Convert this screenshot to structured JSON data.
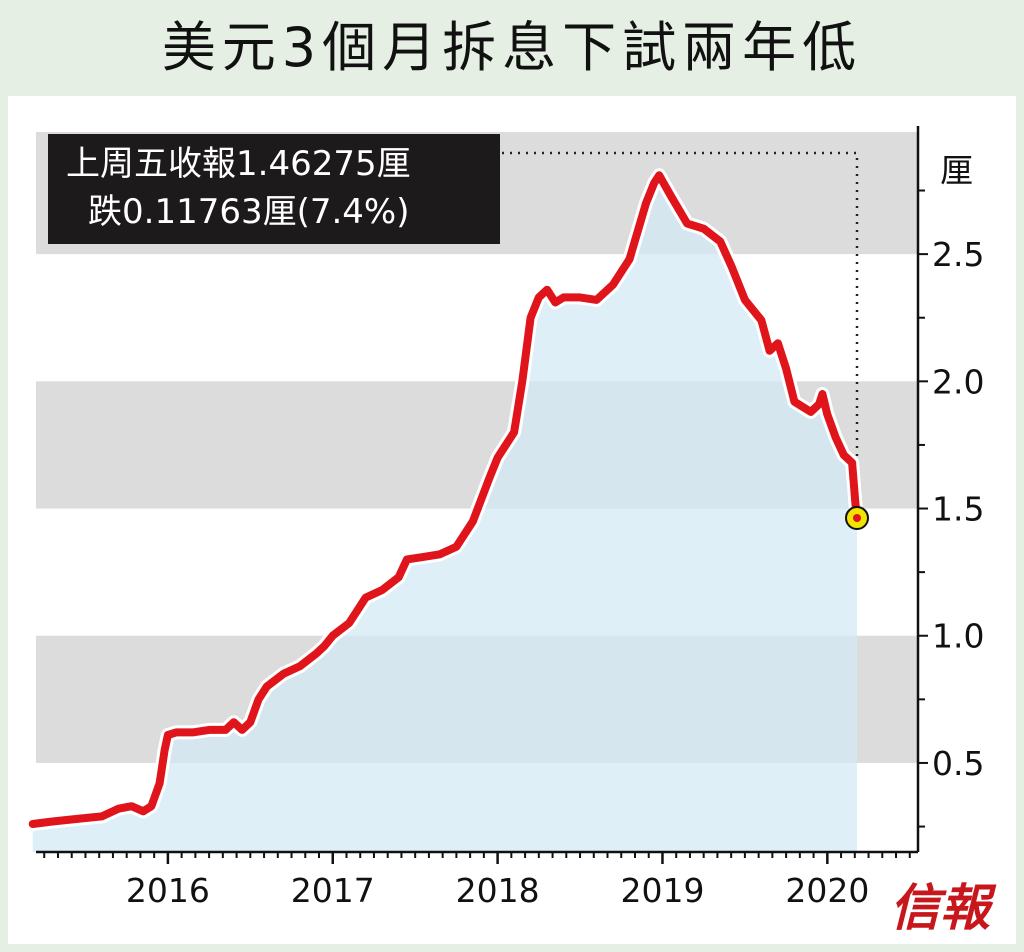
{
  "title": "美元3個月拆息下試兩年低",
  "annotation": {
    "line1": "上周五收報1.46275厘",
    "line2": "跌0.11763厘(7.4%)"
  },
  "logo": "信報",
  "colors": {
    "line": "#e0141b",
    "area": "#d3eaf6",
    "band": "#dcdcdc",
    "marker": "#f2e400"
  },
  "chart_data": {
    "type": "area",
    "title": "美元3個月拆息下試兩年低",
    "ylabel": "厘",
    "ylim": [
      0.15,
      2.98
    ],
    "yticks": [
      0.5,
      1.0,
      1.5,
      2.0,
      2.5
    ],
    "ytick_labels": [
      "0.5",
      "1.0",
      "1.5",
      "2.0",
      "2.5"
    ],
    "xlim": [
      2015.2,
      2020.55
    ],
    "xticks": [
      2016,
      2017,
      2018,
      2019,
      2020
    ],
    "xtick_labels": [
      "2016",
      "2017",
      "2018",
      "2019",
      "2020"
    ],
    "grid": "alternating horizontal bands",
    "series": [
      {
        "values": [
          [
            2015.18,
            0.26
          ],
          [
            2015.3,
            0.27
          ],
          [
            2015.45,
            0.28
          ],
          [
            2015.6,
            0.29
          ],
          [
            2015.7,
            0.32
          ],
          [
            2015.78,
            0.33
          ],
          [
            2015.85,
            0.31
          ],
          [
            2015.9,
            0.33
          ],
          [
            2015.95,
            0.42
          ],
          [
            2015.98,
            0.55
          ],
          [
            2016.0,
            0.61
          ],
          [
            2016.05,
            0.62
          ],
          [
            2016.15,
            0.62
          ],
          [
            2016.25,
            0.63
          ],
          [
            2016.35,
            0.63
          ],
          [
            2016.4,
            0.66
          ],
          [
            2016.45,
            0.63
          ],
          [
            2016.5,
            0.66
          ],
          [
            2016.55,
            0.75
          ],
          [
            2016.6,
            0.8
          ],
          [
            2016.7,
            0.85
          ],
          [
            2016.8,
            0.88
          ],
          [
            2016.9,
            0.93
          ],
          [
            2016.95,
            0.96
          ],
          [
            2017.0,
            1.0
          ],
          [
            2017.1,
            1.05
          ],
          [
            2017.2,
            1.15
          ],
          [
            2017.3,
            1.18
          ],
          [
            2017.4,
            1.23
          ],
          [
            2017.45,
            1.3
          ],
          [
            2017.55,
            1.31
          ],
          [
            2017.65,
            1.32
          ],
          [
            2017.75,
            1.35
          ],
          [
            2017.85,
            1.45
          ],
          [
            2017.95,
            1.62
          ],
          [
            2018.0,
            1.7
          ],
          [
            2018.1,
            1.8
          ],
          [
            2018.15,
            2.0
          ],
          [
            2018.2,
            2.25
          ],
          [
            2018.25,
            2.33
          ],
          [
            2018.3,
            2.36
          ],
          [
            2018.35,
            2.31
          ],
          [
            2018.4,
            2.33
          ],
          [
            2018.5,
            2.33
          ],
          [
            2018.6,
            2.32
          ],
          [
            2018.7,
            2.38
          ],
          [
            2018.8,
            2.48
          ],
          [
            2018.9,
            2.7
          ],
          [
            2018.95,
            2.78
          ],
          [
            2018.98,
            2.81
          ],
          [
            2019.05,
            2.73
          ],
          [
            2019.15,
            2.62
          ],
          [
            2019.25,
            2.6
          ],
          [
            2019.35,
            2.55
          ],
          [
            2019.42,
            2.45
          ],
          [
            2019.5,
            2.32
          ],
          [
            2019.6,
            2.24
          ],
          [
            2019.65,
            2.12
          ],
          [
            2019.7,
            2.15
          ],
          [
            2019.75,
            2.05
          ],
          [
            2019.8,
            1.92
          ],
          [
            2019.85,
            1.9
          ],
          [
            2019.9,
            1.88
          ],
          [
            2019.95,
            1.91
          ],
          [
            2019.97,
            1.95
          ],
          [
            2020.0,
            1.87
          ],
          [
            2020.05,
            1.78
          ],
          [
            2020.1,
            1.71
          ],
          [
            2020.15,
            1.68
          ],
          [
            2020.17,
            1.52
          ],
          [
            2020.18,
            1.46275
          ]
        ]
      }
    ],
    "last_point": {
      "x": 2020.18,
      "y": 1.46275
    }
  }
}
